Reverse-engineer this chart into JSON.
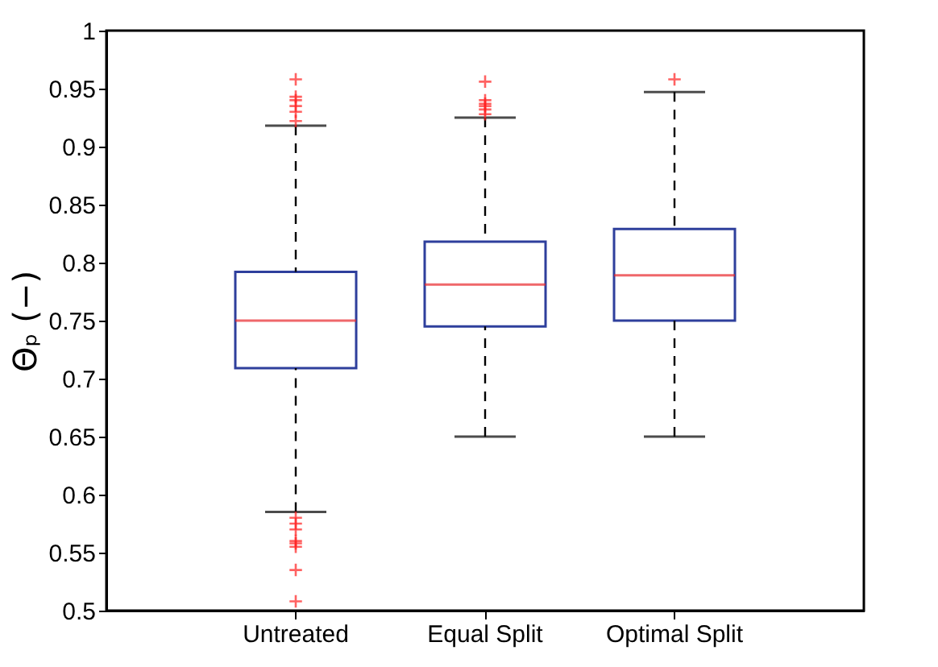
{
  "chart_data": {
    "type": "box",
    "ylabel": "Θₚ (−)",
    "categories": [
      "Untreated",
      "Equal Split",
      "Optimal Split"
    ],
    "ylim": [
      0.5,
      1
    ],
    "yticks": [
      0.5,
      0.55,
      0.6,
      0.65,
      0.7,
      0.75,
      0.8,
      0.85,
      0.9,
      0.95,
      1
    ],
    "marker": "cross",
    "series": [
      {
        "color": "#2e3f9c",
        "boxes": [
          {
            "low": 0.585,
            "q1": 0.709,
            "median": 0.75,
            "q3": 0.792,
            "high": 0.918,
            "outliers": [
              0.958,
              0.943,
              0.94,
              0.935,
              0.93,
              0.922,
              0.58,
              0.575,
              0.57,
              0.56,
              0.558,
              0.555,
              0.535,
              0.508
            ]
          },
          {
            "low": 0.65,
            "q1": 0.745,
            "median": 0.781,
            "q3": 0.818,
            "high": 0.925,
            "outliers": [
              0.956,
              0.94,
              0.937,
              0.935,
              0.932,
              0.928
            ]
          },
          {
            "low": 0.65,
            "q1": 0.75,
            "median": 0.789,
            "q3": 0.829,
            "high": 0.947,
            "outliers": [
              0.958
            ]
          }
        ]
      }
    ]
  }
}
